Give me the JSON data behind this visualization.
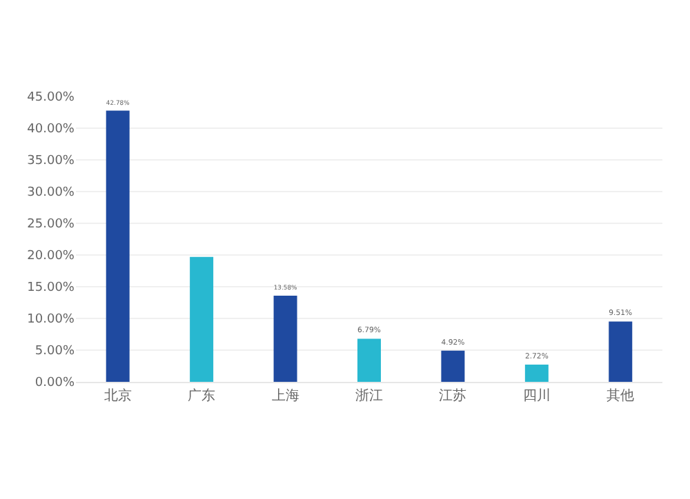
{
  "chart_data": {
    "type": "bar",
    "categories": [
      "北京",
      "广东",
      "上海",
      "浙江",
      "江苏",
      "四川",
      "其他"
    ],
    "values": [
      42.78,
      19.7,
      13.58,
      6.79,
      4.92,
      2.72,
      9.51
    ],
    "value_labels": [
      "42.78%",
      null,
      "13.58%",
      "6.79%",
      "4.92%",
      "2.72%",
      "9.51%"
    ],
    "colors": [
      "#1f4aa0",
      "#28b8d0",
      "#1f4aa0",
      "#28b8d0",
      "#1f4aa0",
      "#28b8d0",
      "#1f4aa0"
    ],
    "ylim": [
      0,
      45
    ],
    "yticks": [
      {
        "value": 0,
        "label": "0.00%"
      },
      {
        "value": 5,
        "label": "5.00%"
      },
      {
        "value": 10,
        "label": "10.00%"
      },
      {
        "value": 15,
        "label": "15.00%"
      },
      {
        "value": 20,
        "label": "20.00%"
      },
      {
        "value": 25,
        "label": "25.00%"
      },
      {
        "value": 30,
        "label": "30.00%"
      },
      {
        "value": 35,
        "label": "35.00%"
      },
      {
        "value": 40,
        "label": "40.00%"
      },
      {
        "value": 45,
        "label": "45.00%"
      }
    ],
    "grid": "y"
  }
}
